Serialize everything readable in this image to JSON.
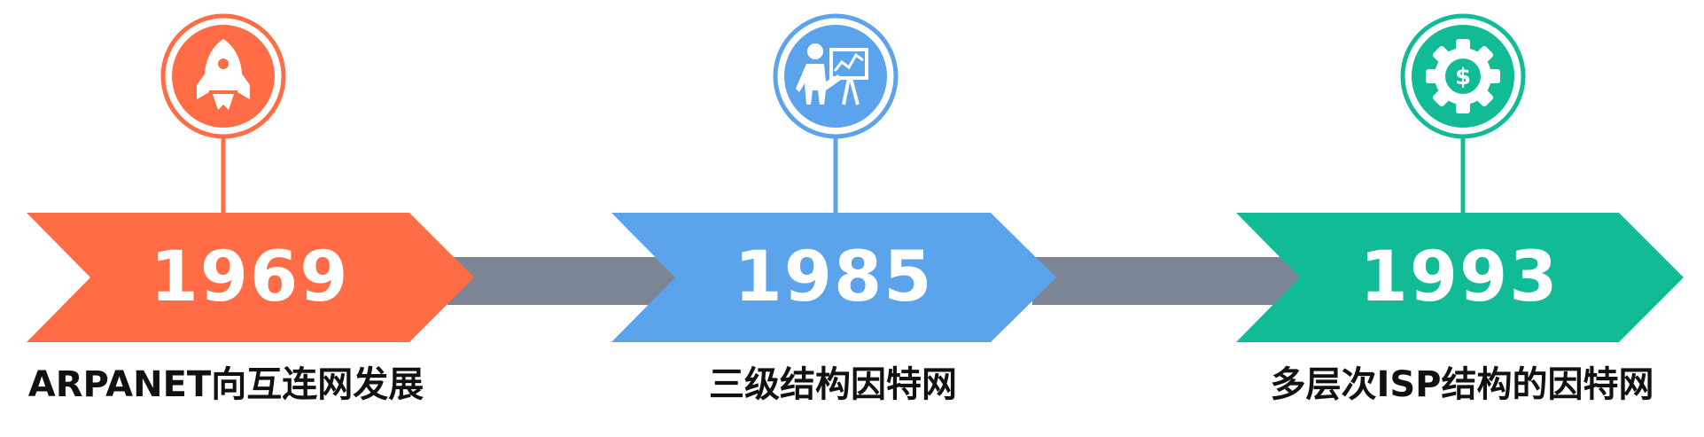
{
  "colors": {
    "connector": "#7b8594",
    "milestone_1": "#ff6c45",
    "milestone_2": "#5ba4ec",
    "milestone_3": "#10bb95"
  },
  "milestones": [
    {
      "year": "1969",
      "caption": "ARPANET向互连网发展",
      "icon": "rocket-icon",
      "color": "#ff6c45"
    },
    {
      "year": "1985",
      "caption": "三级结构因特网",
      "icon": "presenter-board-icon",
      "color": "#5ba4ec"
    },
    {
      "year": "1993",
      "caption": "多层次ISP结构的因特网",
      "icon": "dollar-gear-icon",
      "color": "#10bb95"
    }
  ]
}
